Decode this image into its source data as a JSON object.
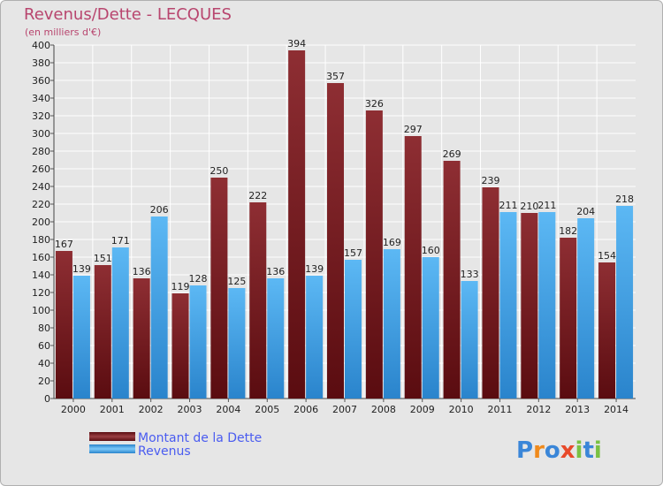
{
  "chart_data": {
    "type": "bar",
    "title": "Revenus/Dette - LECQUES",
    "subtitle": "(en milliers d'€)",
    "categories": [
      "2000",
      "2001",
      "2002",
      "2003",
      "2004",
      "2005",
      "2006",
      "2007",
      "2008",
      "2009",
      "2010",
      "2011",
      "2012",
      "2013",
      "2014"
    ],
    "series": [
      {
        "name": "Montant de la Dette",
        "color": "#7a1e22",
        "values": [
          167,
          151,
          136,
          119,
          250,
          222,
          394,
          357,
          326,
          297,
          269,
          239,
          210,
          182,
          154
        ]
      },
      {
        "name": "Revenus",
        "color": "#3a9ee6",
        "values": [
          139,
          171,
          206,
          128,
          125,
          136,
          139,
          157,
          169,
          160,
          133,
          211,
          211,
          204,
          218
        ]
      }
    ],
    "ylim": [
      0,
      400
    ],
    "ytick_step": 20,
    "xlabel": "",
    "ylabel": "",
    "grid": true,
    "legend": "bottom-left"
  },
  "brand": {
    "letters": [
      "P",
      "r",
      "o",
      "x",
      "i",
      "t",
      "i"
    ],
    "colors": [
      "#3a86d8",
      "#f08a1c",
      "#3a86d8",
      "#e84a2a",
      "#7ac143",
      "#3a86d8",
      "#7ac143"
    ]
  }
}
